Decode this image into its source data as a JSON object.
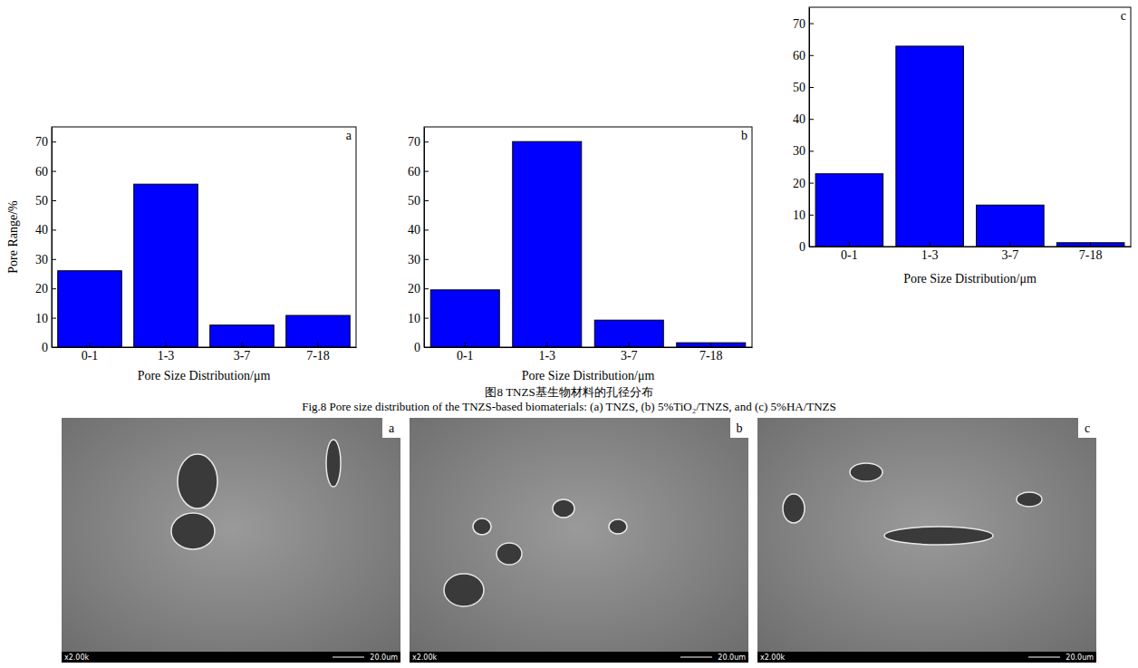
{
  "chart_data": [
    {
      "type": "bar",
      "title": "a",
      "categories": [
        "0-1",
        "1-3",
        "3-7",
        "7-18"
      ],
      "values": [
        26,
        55.5,
        7.5,
        10.8
      ],
      "color": "#0000ff",
      "x_label": "Pore Size Distribution/μm",
      "y_label": "Pore Range/%",
      "ylim": [
        0,
        75
      ],
      "yticks": [
        0,
        10,
        20,
        30,
        40,
        50,
        60,
        70
      ],
      "grid": false
    },
    {
      "type": "bar",
      "title": "b",
      "categories": [
        "0-1",
        "1-3",
        "3-7",
        "7-18"
      ],
      "values": [
        19.5,
        70,
        9.2,
        1.5
      ],
      "color": "#0000ff",
      "x_label": "Pore Size Distribution/μm",
      "ylim": [
        0,
        75
      ],
      "yticks": [
        0,
        10,
        20,
        30,
        40,
        50,
        60,
        70
      ],
      "grid": false
    },
    {
      "type": "bar",
      "title": "c",
      "categories": [
        "0-1",
        "1-3",
        "3-7",
        "7-18"
      ],
      "values": [
        22.8,
        62.8,
        13,
        1.2
      ],
      "color": "#0000ff",
      "x_label": "Pore Size Distribution/μm",
      "ylim": [
        0,
        75
      ],
      "yticks": [
        0,
        10,
        20,
        30,
        40,
        50,
        60,
        70
      ],
      "grid": false
    }
  ],
  "caption": {
    "chinese": "图8 TNZS基生物材料的孔径分布",
    "english": "Fig.8 Pore size distribution of the TNZS-based biomaterials: (a) TNZS, (b) 5%TiO₂/TNZS, and (c) 5%HA/TNZS"
  },
  "micrographs": [
    {
      "label": "a",
      "magnification": "x2.00k",
      "scale": "20.0um"
    },
    {
      "label": "b",
      "magnification": "x2.00k",
      "scale": "20.0um"
    },
    {
      "label": "c",
      "magnification": "x2.00k",
      "scale": "20.0um"
    }
  ]
}
